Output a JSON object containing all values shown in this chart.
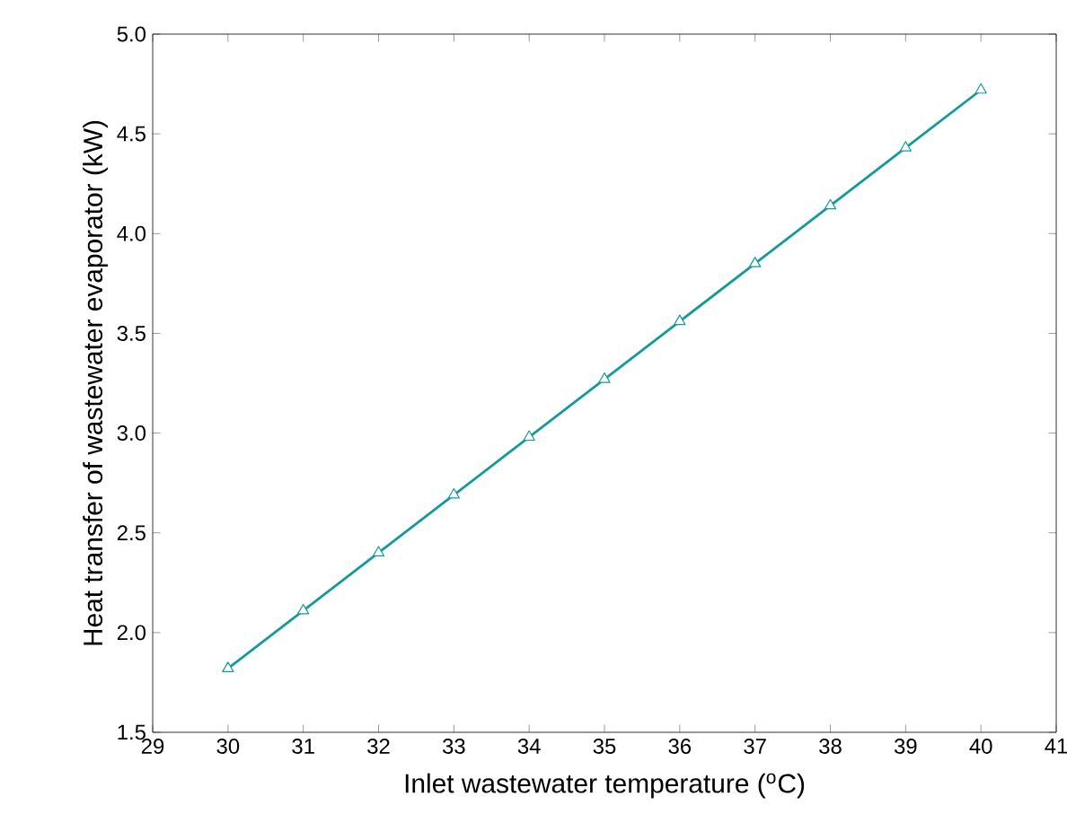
{
  "chart_data": {
    "type": "line",
    "xlabel": "Inlet wastewater temperature ($^{o}$C)",
    "ylabel": "Heat transfer of wastewater evaporator (kW)",
    "x": [
      30,
      31,
      32,
      33,
      34,
      35,
      36,
      37,
      38,
      39,
      40
    ],
    "series": [
      {
        "color": "#159a9c",
        "values": [
          1.82,
          2.11,
          2.4,
          2.69,
          2.98,
          3.27,
          3.56,
          3.85,
          4.14,
          4.43,
          4.72
        ]
      }
    ],
    "xlim": [
      29,
      41
    ],
    "xticks": [
      29,
      30,
      31,
      32,
      33,
      34,
      35,
      36,
      37,
      38,
      39,
      40,
      41
    ],
    "ylim": [
      1.5,
      5.0
    ],
    "yticks": [
      {
        "value": 1.5,
        "label": "1.5"
      },
      {
        "value": 2.0,
        "label": "2.0"
      },
      {
        "value": 2.5,
        "label": "2.5"
      },
      {
        "value": 3.0,
        "label": "3.0"
      },
      {
        "value": 3.5,
        "label": "3.5"
      },
      {
        "value": 4.0,
        "label": "4.0"
      },
      {
        "value": 4.5,
        "label": "4.5"
      },
      {
        "value": 5.0,
        "label": "5.0"
      }
    ],
    "marker": "triangle",
    "line_style": "solid"
  }
}
